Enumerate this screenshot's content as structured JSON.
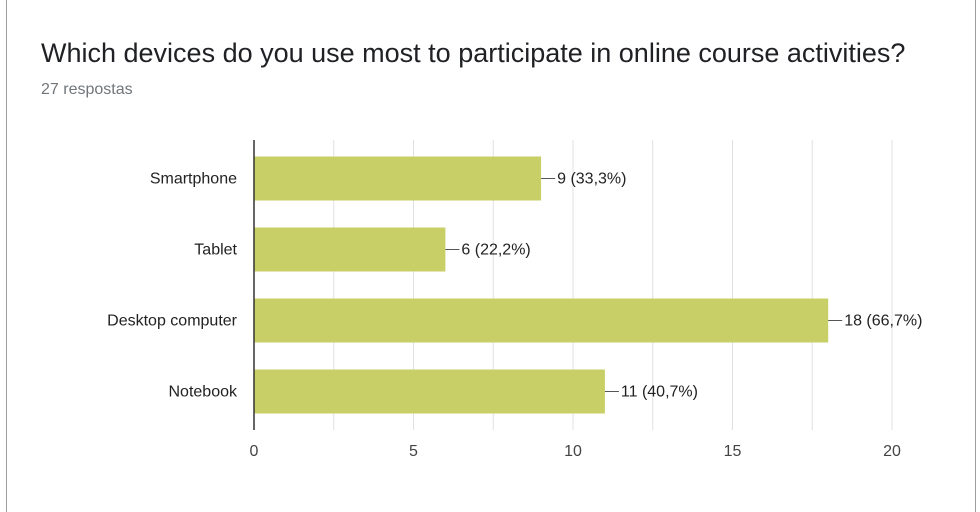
{
  "question": {
    "title": "Which devices do you use most to participate in online course activities?",
    "response_count": "27 respostas"
  },
  "colors": {
    "bar": "#c8cf67",
    "grid": "#e0e0e0",
    "axis": "#333333",
    "text": "#222222"
  },
  "chart_data": {
    "type": "bar",
    "orientation": "horizontal",
    "categories": [
      "Smartphone",
      "Tablet",
      "Desktop computer",
      "Notebook"
    ],
    "values": [
      9,
      6,
      18,
      11
    ],
    "data_labels": [
      "9 (33,3%)",
      "6 (22,2%)",
      "18 (66,7%)",
      "11 (40,7%)"
    ],
    "xlim": [
      0,
      20
    ],
    "x_ticks": [
      0,
      5,
      10,
      15,
      20
    ],
    "grid": true,
    "legend": "none"
  }
}
